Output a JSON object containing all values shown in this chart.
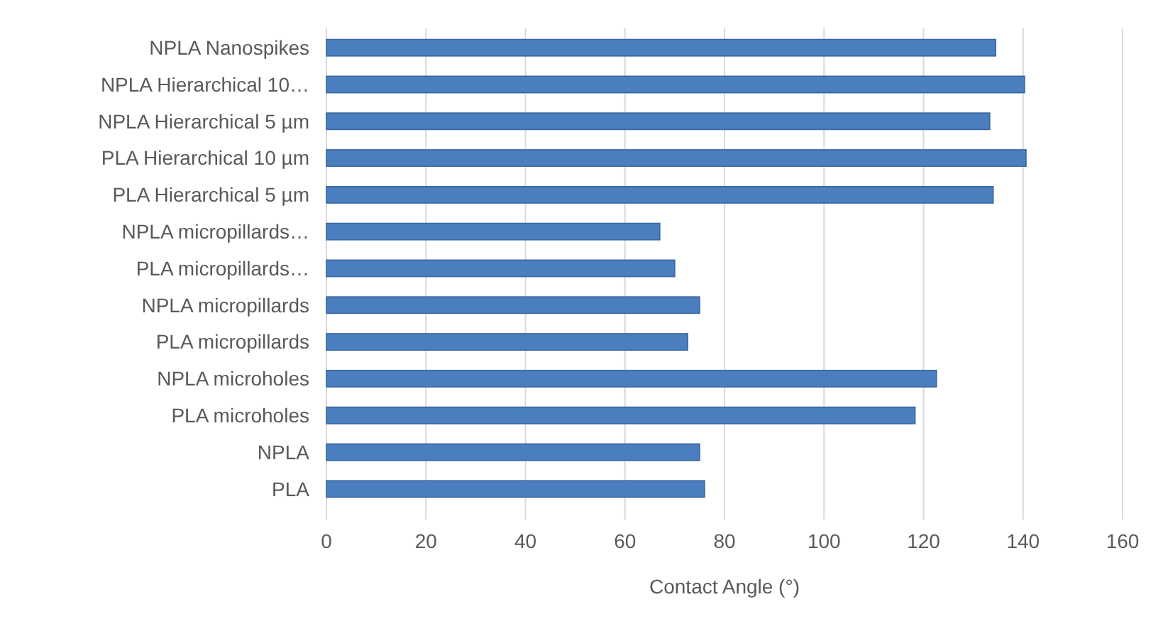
{
  "chart_data": {
    "type": "bar",
    "orientation": "horizontal",
    "xlabel": "Contact Angle (°)",
    "categories": [
      "NPLA Nanospikes",
      "NPLA Hierarchical 10…",
      "NPLA Hierarchical 5 µm",
      "PLA Hierarchical 10 µm",
      "PLA Hierarchical 5 µm",
      "NPLA micropillards…",
      "PLA micropillards…",
      "NPLA micropillards",
      "PLA micropillards",
      "NPLA microholes",
      "PLA microholes",
      "NPLA",
      "PLA"
    ],
    "values": [
      134.5,
      140.3,
      133.3,
      140.6,
      134,
      67,
      70,
      75,
      72.6,
      122.6,
      118.3,
      75,
      76
    ],
    "color": "#4a7ebf",
    "xlim": [
      0,
      160
    ],
    "xticks": [
      0,
      20,
      40,
      60,
      80,
      100,
      120,
      140,
      160
    ],
    "grid": "x"
  }
}
